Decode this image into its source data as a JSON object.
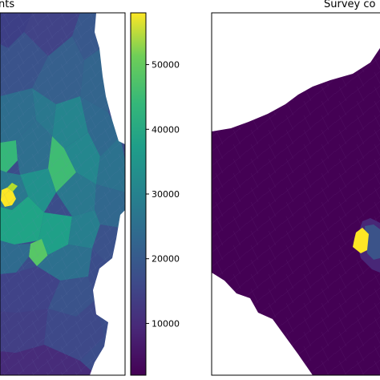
{
  "chart_data": [
    {
      "type": "heatmap",
      "subtype": "choropleth",
      "title": "nts",
      "colormap": "viridis",
      "colorbar": {
        "vmin": 2000,
        "vmax": 58000,
        "ticks": [
          {
            "value": 10000,
            "label": "10000"
          },
          {
            "value": 20000,
            "label": "20000"
          },
          {
            "value": 30000,
            "label": "30000"
          },
          {
            "value": 40000,
            "label": "40000"
          },
          {
            "value": 50000,
            "label": "50000"
          }
        ]
      },
      "background_color": "#3b4d8a",
      "regions": [
        {
          "area": "upper left",
          "value": 9000
        },
        {
          "area": "upper centre",
          "value": 13000
        },
        {
          "area": "middle left",
          "value": 36000
        },
        {
          "area": "centre-left hotspot",
          "value": 57000
        },
        {
          "area": "central belt",
          "value": 33000
        },
        {
          "area": "lower centre",
          "value": 38000
        },
        {
          "area": "lower left",
          "value": 15000
        },
        {
          "area": "bottom",
          "value": 8000
        }
      ]
    },
    {
      "type": "heatmap",
      "subtype": "choropleth",
      "title": "Survey co",
      "colormap": "viridis",
      "background_color": "#440154",
      "regions": [
        {
          "area": "most of map",
          "value": "low"
        },
        {
          "area": "east-central hotspot",
          "value": "high"
        },
        {
          "area": "east-central surroundings",
          "value": "medium"
        }
      ]
    }
  ]
}
